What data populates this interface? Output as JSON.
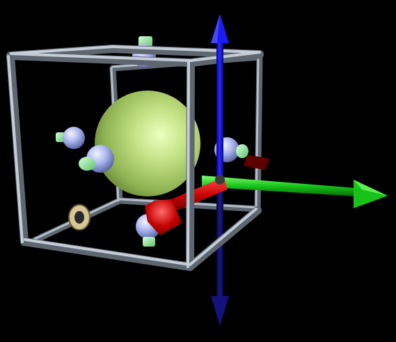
{
  "scene": {
    "background_color": "#000000",
    "frame_color": "#a9b4c0",
    "core_sphere_color": "#b8dc78",
    "satellite_sphere_color": "#aab6f0",
    "satellite_cap_color": "#9ff0a8",
    "ring_color": "#c8b98a",
    "axes": [
      {
        "name": "x-axis",
        "color": "#cc0000",
        "icon": "red-arrow"
      },
      {
        "name": "y-axis",
        "color": "#16c416",
        "icon": "green-arrow"
      },
      {
        "name": "z-axis",
        "color": "#1414cc",
        "icon": "blue-arrow"
      }
    ]
  }
}
